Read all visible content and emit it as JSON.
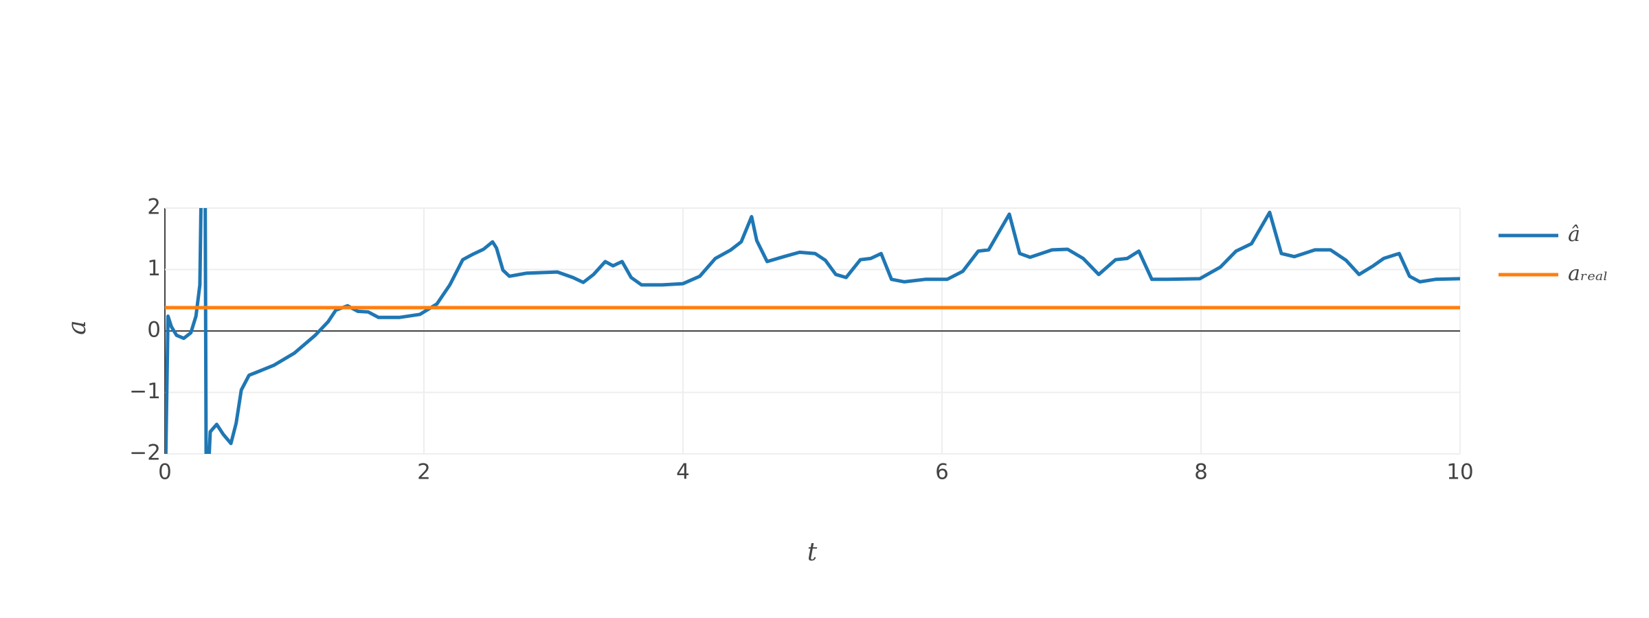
{
  "chart_data": {
    "type": "line",
    "x_label": "t",
    "y_label": "a",
    "xlim": [
      0,
      10
    ],
    "ylim": [
      -2,
      2
    ],
    "xticks": [
      0,
      2,
      4,
      6,
      8,
      10
    ],
    "yticks": [
      {
        "value": -2,
        "label": "−2"
      },
      {
        "value": -1,
        "label": "−1"
      },
      0,
      1,
      2
    ],
    "grid": true,
    "legend": "right",
    "series": [
      {
        "name": "â",
        "color": "#1f77b4",
        "x": [
          0,
          0.024,
          0.05,
          0.09,
          0.146,
          0.2,
          0.24,
          0.27,
          0.285,
          0.31,
          0.32,
          0.35,
          0.4,
          0.45,
          0.51,
          0.55,
          0.59,
          0.65,
          0.71,
          0.84,
          1.0,
          1.16,
          1.26,
          1.32,
          1.41,
          1.49,
          1.57,
          1.65,
          1.81,
          1.97,
          2.1,
          2.2,
          2.3,
          2.38,
          2.46,
          2.53,
          2.56,
          2.61,
          2.66,
          2.79,
          3.03,
          3.15,
          3.23,
          3.31,
          3.4,
          3.46,
          3.53,
          3.6,
          3.68,
          3.84,
          4.0,
          4.13,
          4.25,
          4.37,
          4.45,
          4.53,
          4.57,
          4.65,
          4.78,
          4.9,
          5.02,
          5.1,
          5.18,
          5.26,
          5.37,
          5.45,
          5.53,
          5.61,
          5.71,
          5.87,
          6.04,
          6.16,
          6.28,
          6.36,
          6.44,
          6.52,
          6.6,
          6.68,
          6.85,
          6.97,
          7.09,
          7.21,
          7.34,
          7.43,
          7.52,
          7.62,
          7.74,
          7.99,
          8.15,
          8.27,
          8.39,
          8.53,
          8.62,
          8.72,
          8.88,
          9.0,
          9.12,
          9.22,
          9.33,
          9.41,
          9.53,
          9.61,
          9.69,
          9.81,
          10
        ],
        "values": [
          -3,
          0.24,
          0.07,
          -0.07,
          -0.12,
          -0.03,
          0.24,
          0.75,
          3,
          3,
          -3,
          -1.64,
          -1.52,
          -1.68,
          -1.83,
          -1.5,
          -0.96,
          -0.72,
          -0.67,
          -0.56,
          -0.36,
          -0.07,
          0.15,
          0.34,
          0.41,
          0.32,
          0.31,
          0.22,
          0.22,
          0.27,
          0.44,
          0.75,
          1.16,
          1.25,
          1.33,
          1.45,
          1.35,
          0.99,
          0.89,
          0.94,
          0.96,
          0.87,
          0.79,
          0.92,
          1.13,
          1.06,
          1.13,
          0.87,
          0.75,
          0.75,
          0.77,
          0.89,
          1.18,
          1.32,
          1.45,
          1.86,
          1.47,
          1.13,
          1.21,
          1.28,
          1.26,
          1.15,
          0.92,
          0.87,
          1.16,
          1.18,
          1.26,
          0.84,
          0.8,
          0.84,
          0.84,
          0.97,
          1.3,
          1.32,
          1.61,
          1.9,
          1.26,
          1.2,
          1.32,
          1.33,
          1.18,
          0.92,
          1.16,
          1.18,
          1.3,
          0.84,
          0.84,
          0.85,
          1.04,
          1.3,
          1.42,
          1.93,
          1.26,
          1.21,
          1.32,
          1.32,
          1.15,
          0.92,
          1.06,
          1.18,
          1.26,
          0.89,
          0.8,
          0.84,
          0.85
        ]
      },
      {
        "name": "aᵣₑₐₗ",
        "color": "#ff7f0e",
        "x": [
          0,
          10
        ],
        "values": [
          0.38,
          0.38
        ]
      }
    ]
  }
}
